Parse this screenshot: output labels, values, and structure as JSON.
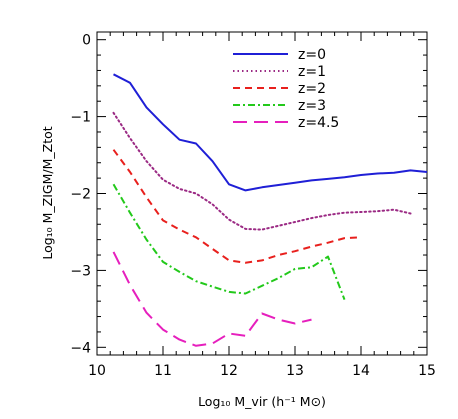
{
  "chart_data": {
    "type": "line",
    "xlabel": "Log₁₀ M_vir (h⁻¹ M⊙)",
    "ylabel": "Log₁₀ M_ZIGM/M_Ztot",
    "xlim": [
      10,
      15
    ],
    "ylim": [
      -4.1,
      0.1
    ],
    "xticks": [
      10,
      11,
      12,
      13,
      14,
      15
    ],
    "yticks": [
      0,
      -1,
      -2,
      -3,
      -4
    ],
    "x_minor_step": 0.2,
    "y_minor_step": 0.2,
    "grid": false,
    "legend_position": "top-right",
    "series": [
      {
        "name": "z=0",
        "color": "#1f1fd6",
        "dash": "solid",
        "points": [
          [
            10.25,
            -0.45
          ],
          [
            10.5,
            -0.56
          ],
          [
            10.75,
            -0.88
          ],
          [
            11.0,
            -1.1
          ],
          [
            11.25,
            -1.3
          ],
          [
            11.5,
            -1.35
          ],
          [
            11.75,
            -1.58
          ],
          [
            12.0,
            -1.88
          ],
          [
            12.25,
            -1.96
          ],
          [
            12.5,
            -1.92
          ],
          [
            12.75,
            -1.89
          ],
          [
            13.0,
            -1.86
          ],
          [
            13.25,
            -1.83
          ],
          [
            13.5,
            -1.81
          ],
          [
            13.75,
            -1.79
          ],
          [
            14.0,
            -1.76
          ],
          [
            14.25,
            -1.74
          ],
          [
            14.5,
            -1.73
          ],
          [
            14.75,
            -1.7
          ],
          [
            15.0,
            -1.72
          ]
        ]
      },
      {
        "name": "z=1",
        "color": "#9b2a84",
        "dash": "dotted",
        "points": [
          [
            10.25,
            -0.95
          ],
          [
            10.5,
            -1.28
          ],
          [
            10.75,
            -1.58
          ],
          [
            11.0,
            -1.82
          ],
          [
            11.25,
            -1.94
          ],
          [
            11.5,
            -2.0
          ],
          [
            11.75,
            -2.14
          ],
          [
            12.0,
            -2.34
          ],
          [
            12.25,
            -2.46
          ],
          [
            12.5,
            -2.47
          ],
          [
            12.75,
            -2.42
          ],
          [
            13.0,
            -2.37
          ],
          [
            13.25,
            -2.32
          ],
          [
            13.5,
            -2.28
          ],
          [
            13.75,
            -2.25
          ],
          [
            14.0,
            -2.24
          ],
          [
            14.25,
            -2.23
          ],
          [
            14.5,
            -2.21
          ],
          [
            14.75,
            -2.26
          ]
        ]
      },
      {
        "name": "z=2",
        "color": "#e8201d",
        "dash": "dashed",
        "points": [
          [
            10.25,
            -1.43
          ],
          [
            10.5,
            -1.72
          ],
          [
            10.75,
            -2.05
          ],
          [
            11.0,
            -2.35
          ],
          [
            11.25,
            -2.47
          ],
          [
            11.5,
            -2.57
          ],
          [
            11.75,
            -2.72
          ],
          [
            12.0,
            -2.87
          ],
          [
            12.25,
            -2.9
          ],
          [
            12.5,
            -2.87
          ],
          [
            12.75,
            -2.8
          ],
          [
            13.0,
            -2.75
          ],
          [
            13.25,
            -2.69
          ],
          [
            13.5,
            -2.64
          ],
          [
            13.75,
            -2.58
          ],
          [
            14.0,
            -2.57
          ]
        ]
      },
      {
        "name": "z=3",
        "color": "#23c91b",
        "dash": "dash-dot",
        "points": [
          [
            10.25,
            -1.88
          ],
          [
            10.5,
            -2.25
          ],
          [
            10.75,
            -2.6
          ],
          [
            11.0,
            -2.89
          ],
          [
            11.25,
            -3.02
          ],
          [
            11.5,
            -3.14
          ],
          [
            11.75,
            -3.21
          ],
          [
            12.0,
            -3.28
          ],
          [
            12.25,
            -3.3
          ],
          [
            12.5,
            -3.2
          ],
          [
            12.75,
            -3.1
          ],
          [
            13.0,
            -2.98
          ],
          [
            13.25,
            -2.96
          ],
          [
            13.5,
            -2.82
          ],
          [
            13.75,
            -3.38
          ]
        ]
      },
      {
        "name": "z=4.5",
        "color": "#e61fbd",
        "dash": "long-dash",
        "points": [
          [
            10.25,
            -2.76
          ],
          [
            10.5,
            -3.19
          ],
          [
            10.75,
            -3.55
          ],
          [
            11.0,
            -3.77
          ],
          [
            11.25,
            -3.9
          ],
          [
            11.5,
            -3.98
          ],
          [
            11.75,
            -3.95
          ],
          [
            12.0,
            -3.82
          ],
          [
            12.25,
            -3.85
          ],
          [
            12.5,
            -3.56
          ],
          [
            12.75,
            -3.64
          ],
          [
            13.0,
            -3.69
          ],
          [
            13.25,
            -3.64
          ]
        ]
      }
    ]
  }
}
